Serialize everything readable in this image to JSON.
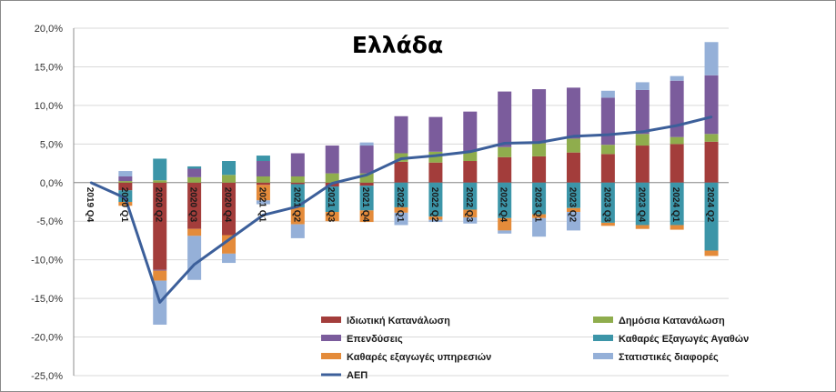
{
  "chart_data": {
    "type": "bar",
    "stacked": true,
    "title": "Ελλάδα",
    "ylim": [
      -25,
      20
    ],
    "y_ticks": [
      "20,0%",
      "15,0%",
      "10,0%",
      "5,0%",
      "0,0%",
      "-5,0%",
      "-10,0%",
      "-15,0%",
      "-20,0%",
      "-25,0%"
    ],
    "y_tick_values": [
      20,
      15,
      10,
      5,
      0,
      -5,
      -10,
      -15,
      -20,
      -25
    ],
    "grid": true,
    "legend_position": "bottom-right",
    "categories": [
      "2019 Q4",
      "2020 Q1",
      "2020 Q2",
      "2020 Q3",
      "2020 Q4",
      "2021 Q1",
      "2021 Q2",
      "2021 Q3",
      "2021 Q4",
      "2022 Q1",
      "2022 Q2",
      "2022 Q3",
      "2022 Q4",
      "2023 Q1",
      "2023 Q2",
      "2023 Q3",
      "2023 Q4",
      "2024 Q1",
      "2024 Q2"
    ],
    "series": [
      {
        "name": "Ιδιωτική Κατανάλωση",
        "color": "#a33d3b",
        "values": [
          0,
          -1.0,
          -11.3,
          -6.0,
          -6.8,
          -0.3,
          -0.2,
          -0.5,
          -0.4,
          2.7,
          2.6,
          2.8,
          3.3,
          3.4,
          3.9,
          3.7,
          4.8,
          5.0,
          5.3
        ]
      },
      {
        "name": "Δημόσια Κατανάλωση",
        "color": "#8fad4d",
        "values": [
          0,
          0.2,
          0.3,
          0.7,
          1.0,
          0.8,
          0.8,
          1.2,
          1.2,
          1.1,
          1.4,
          1.2,
          1.3,
          1.7,
          1.8,
          1.2,
          1.5,
          0.9,
          1.0
        ]
      },
      {
        "name": "Επενδύσεις",
        "color": "#7b5c9c",
        "values": [
          0,
          0.6,
          -0.1,
          1.1,
          0.0,
          2.0,
          3.0,
          3.6,
          3.6,
          4.8,
          4.5,
          5.2,
          7.2,
          7.0,
          6.6,
          6.1,
          5.7,
          7.3,
          7.6
        ]
      },
      {
        "name": "Καθαρές Εξαγωγές Αγαθών",
        "color": "#3c95a8",
        "values": [
          0,
          -1.5,
          2.8,
          0.3,
          1.8,
          0.7,
          -3.0,
          -3.3,
          -3.2,
          -3.2,
          -4.4,
          -3.5,
          -4.6,
          -4.1,
          -3.3,
          -5.2,
          -5.5,
          -5.5,
          -8.8
        ]
      },
      {
        "name": "Καθαρές εξαγωγές υπηρεσιών",
        "color": "#e48b3a",
        "values": [
          0,
          -0.5,
          -1.3,
          -0.9,
          -2.4,
          -2.0,
          -2.2,
          -1.2,
          -1.5,
          -0.7,
          -0.4,
          -1.0,
          -1.6,
          -0.5,
          -0.5,
          -0.4,
          -0.5,
          -0.6,
          -0.7
        ]
      },
      {
        "name": "Στατιστικές διαφορές",
        "color": "#95b0d8",
        "values": [
          0,
          0.7,
          -5.7,
          -5.7,
          -1.2,
          -0.5,
          -1.8,
          0.0,
          0.4,
          -1.6,
          -0.3,
          -0.8,
          -0.4,
          -2.4,
          -2.4,
          0.9,
          1.0,
          0.6,
          4.3
        ]
      },
      {
        "name": "ΑΕΠ",
        "color": "#3c5f9a",
        "type": "line",
        "values": [
          0,
          -2.0,
          -15.5,
          -10.6,
          -7.4,
          -4.2,
          -3.1,
          -0.1,
          1.0,
          3.1,
          3.5,
          4.0,
          5.1,
          5.2,
          6.0,
          6.2,
          6.6,
          7.4,
          8.5
        ]
      }
    ],
    "legend_entries": [
      {
        "series": 0,
        "kind": "bar"
      },
      {
        "series": 1,
        "kind": "bar"
      },
      {
        "series": 2,
        "kind": "bar"
      },
      {
        "series": 3,
        "kind": "bar"
      },
      {
        "series": 4,
        "kind": "bar"
      },
      {
        "series": 5,
        "kind": "bar"
      },
      {
        "series": 6,
        "kind": "line"
      }
    ]
  }
}
